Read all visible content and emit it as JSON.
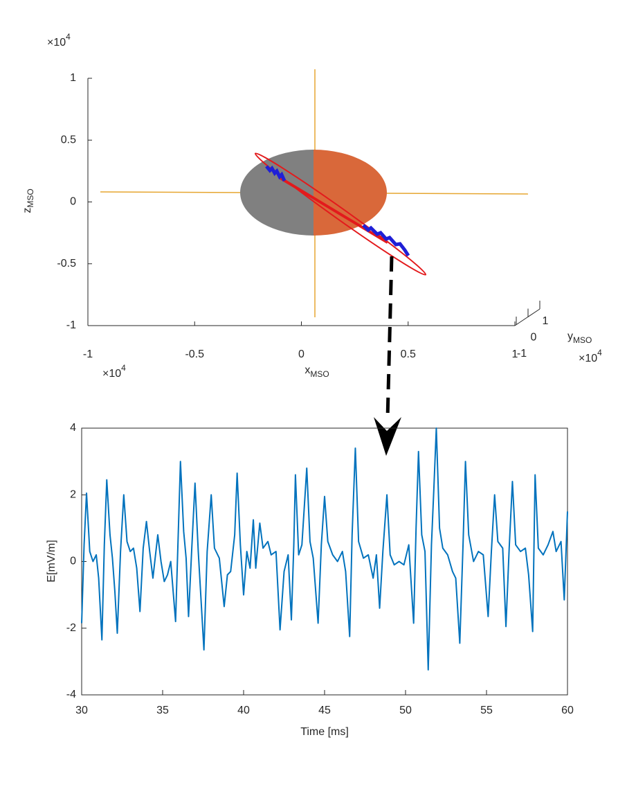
{
  "chart_data": [
    {
      "type": "orbit3d",
      "xlabel": "x",
      "xlabel_sub": "MSO",
      "ylabel": "y",
      "ylabel_sub": "MSO",
      "zlabel": "z",
      "zlabel_sub": "MSO",
      "x_multiplier": "×10",
      "x_multiplier_exp": "4",
      "y_multiplier": "×10",
      "y_multiplier_exp": "4",
      "z_multiplier": "×10",
      "z_multiplier_exp": "4",
      "xlim": [
        -1,
        1
      ],
      "xticks": [
        -1,
        -0.5,
        0,
        0.5,
        1
      ],
      "ylim": [
        -1,
        1
      ],
      "yticks": [
        -1,
        0,
        1
      ],
      "zlim": [
        -1,
        1
      ],
      "zticks": [
        -1,
        -0.5,
        0,
        0.5,
        1
      ]
    },
    {
      "type": "line",
      "xlabel": "Time [ms]",
      "ylabel": "E[mV/m]",
      "color": "#0072bd",
      "xlim": [
        30,
        60
      ],
      "xticks": [
        30,
        35,
        40,
        45,
        50,
        55,
        60
      ],
      "ylim": [
        -4,
        4
      ],
      "yticks": [
        -4,
        -2,
        0,
        2,
        4
      ],
      "x": [
        30.0,
        30.15,
        30.3,
        30.5,
        30.7,
        30.9,
        31.05,
        31.25,
        31.4,
        31.55,
        31.75,
        31.9,
        32.05,
        32.2,
        32.4,
        32.6,
        32.8,
        33.0,
        33.2,
        33.4,
        33.6,
        33.8,
        34.0,
        34.2,
        34.4,
        34.7,
        34.9,
        35.1,
        35.3,
        35.5,
        35.8,
        35.95,
        36.1,
        36.3,
        36.45,
        36.6,
        36.8,
        37.0,
        37.2,
        37.55,
        37.75,
        38.0,
        38.2,
        38.5,
        38.8,
        39.0,
        39.2,
        39.45,
        39.6,
        39.8,
        40.0,
        40.2,
        40.4,
        40.6,
        40.75,
        41.0,
        41.2,
        41.5,
        41.7,
        42.0,
        42.25,
        42.5,
        42.75,
        42.95,
        43.1,
        43.2,
        43.4,
        43.6,
        43.9,
        44.1,
        44.3,
        44.6,
        44.8,
        45.0,
        45.2,
        45.5,
        45.8,
        46.1,
        46.3,
        46.55,
        46.7,
        46.9,
        47.1,
        47.4,
        47.7,
        48.0,
        48.2,
        48.4,
        48.6,
        48.85,
        49.05,
        49.3,
        49.6,
        49.9,
        50.2,
        50.5,
        50.65,
        50.8,
        51.0,
        51.2,
        51.4,
        51.6,
        51.75,
        51.9,
        52.1,
        52.3,
        52.6,
        52.9,
        53.1,
        53.35,
        53.55,
        53.7,
        53.9,
        54.2,
        54.5,
        54.8,
        55.1,
        55.3,
        55.5,
        55.7,
        56.0,
        56.2,
        56.4,
        56.6,
        56.8,
        57.1,
        57.4,
        57.6,
        57.85,
        58.0,
        58.2,
        58.5,
        58.8,
        59.1,
        59.3,
        59.6,
        59.8,
        60.0
      ],
      "values": [
        -1.85,
        0.5,
        2.05,
        0.3,
        0.0,
        0.2,
        -0.5,
        -2.35,
        0.5,
        2.45,
        0.8,
        0.1,
        -0.9,
        -2.15,
        0.3,
        2.0,
        0.6,
        0.3,
        0.4,
        -0.2,
        -1.5,
        0.4,
        1.2,
        0.3,
        -0.5,
        0.8,
        0.0,
        -0.6,
        -0.4,
        0.0,
        -1.8,
        0.6,
        3.0,
        0.9,
        0.1,
        -1.65,
        0.4,
        2.35,
        0.3,
        -2.65,
        0.3,
        2.0,
        0.4,
        0.1,
        -1.35,
        -0.4,
        -0.3,
        0.8,
        2.65,
        0.5,
        -1.0,
        0.3,
        -0.2,
        1.25,
        -0.2,
        1.15,
        0.4,
        0.6,
        0.2,
        0.3,
        -2.05,
        -0.3,
        0.2,
        -1.75,
        0.5,
        2.6,
        0.2,
        0.5,
        2.8,
        0.6,
        0.1,
        -1.85,
        0.5,
        1.95,
        0.6,
        0.2,
        0.0,
        0.3,
        -0.3,
        -2.25,
        0.8,
        3.4,
        0.6,
        0.1,
        0.2,
        -0.5,
        0.2,
        -1.4,
        0.3,
        2.0,
        0.2,
        -0.1,
        0.0,
        -0.1,
        0.5,
        -1.85,
        1.0,
        3.3,
        0.8,
        0.3,
        -3.25,
        0.5,
        2.2,
        4.0,
        1.0,
        0.4,
        0.2,
        -0.3,
        -0.5,
        -2.45,
        0.5,
        3.0,
        0.8,
        0.0,
        0.3,
        0.2,
        -1.65,
        0.3,
        2.0,
        0.6,
        0.4,
        -1.95,
        0.4,
        2.4,
        0.5,
        0.3,
        0.4,
        -0.4,
        -2.1,
        2.6,
        0.4,
        0.2,
        0.5,
        0.9,
        0.3,
        0.6,
        -1.15,
        1.5
      ]
    }
  ]
}
